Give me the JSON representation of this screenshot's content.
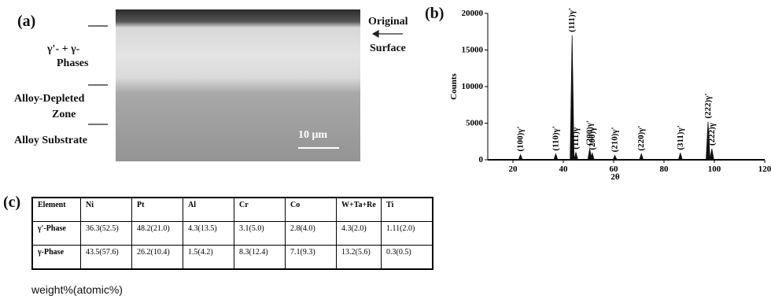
{
  "panel_a": {
    "label": "(a)",
    "layers": [
      "γ'- + γ-",
      "Phases",
      "Alloy-Depleted",
      "Zone",
      "Alloy Substrate"
    ],
    "scale_bar": "10 μm",
    "surface": [
      "Original",
      "Surface"
    ]
  },
  "panel_b": {
    "label": "(b)"
  },
  "chart_data": {
    "type": "peaks",
    "ylabel": "Counts",
    "xlabel": "2θ",
    "x": [
      23,
      37,
      43.5,
      45,
      50.5,
      51.5,
      60.5,
      71,
      86.5,
      97.5,
      99
    ],
    "values": [
      700,
      800,
      17000,
      1000,
      1500,
      900,
      600,
      800,
      900,
      5200,
      1500
    ],
    "peak_labels": [
      "(100)γ'",
      "(110)γ'",
      "(111)γ'",
      "(111)γ",
      "(200)γ'",
      "(200)γ",
      "(210)γ'",
      "(220)γ'",
      "(311)γ'",
      "(222)γ'",
      "(222)γ"
    ],
    "color": "#111111",
    "xlim": [
      10,
      120
    ],
    "xticks": [
      20,
      40,
      60,
      80,
      100,
      120
    ],
    "ylim": [
      0,
      20000
    ],
    "yticks": [
      0,
      5000,
      10000,
      15000,
      20000
    ]
  },
  "panel_c": {
    "label": "(c)",
    "table": {
      "header": [
        "Element",
        "Ni",
        "Pt",
        "Al",
        "Cr",
        "Co",
        "W+Ta+Re",
        "Ti"
      ],
      "rows": [
        [
          "γ'-Phase",
          "36.3(52.5)",
          "48.2(21.0)",
          "4.3(13.5)",
          "3.1(5.0)",
          "2.8(4.0)",
          "4.3(2.0)",
          "1.11(2.0)"
        ],
        [
          "γ-Phase",
          "43.5(57.6)",
          "26.2(10.4)",
          "1.5(4.2)",
          "8.3(12.4)",
          "7.1(9.3)",
          "13.2(5.6)",
          "0.3(0.5)"
        ]
      ]
    },
    "note": "weight%(atomic%)"
  }
}
